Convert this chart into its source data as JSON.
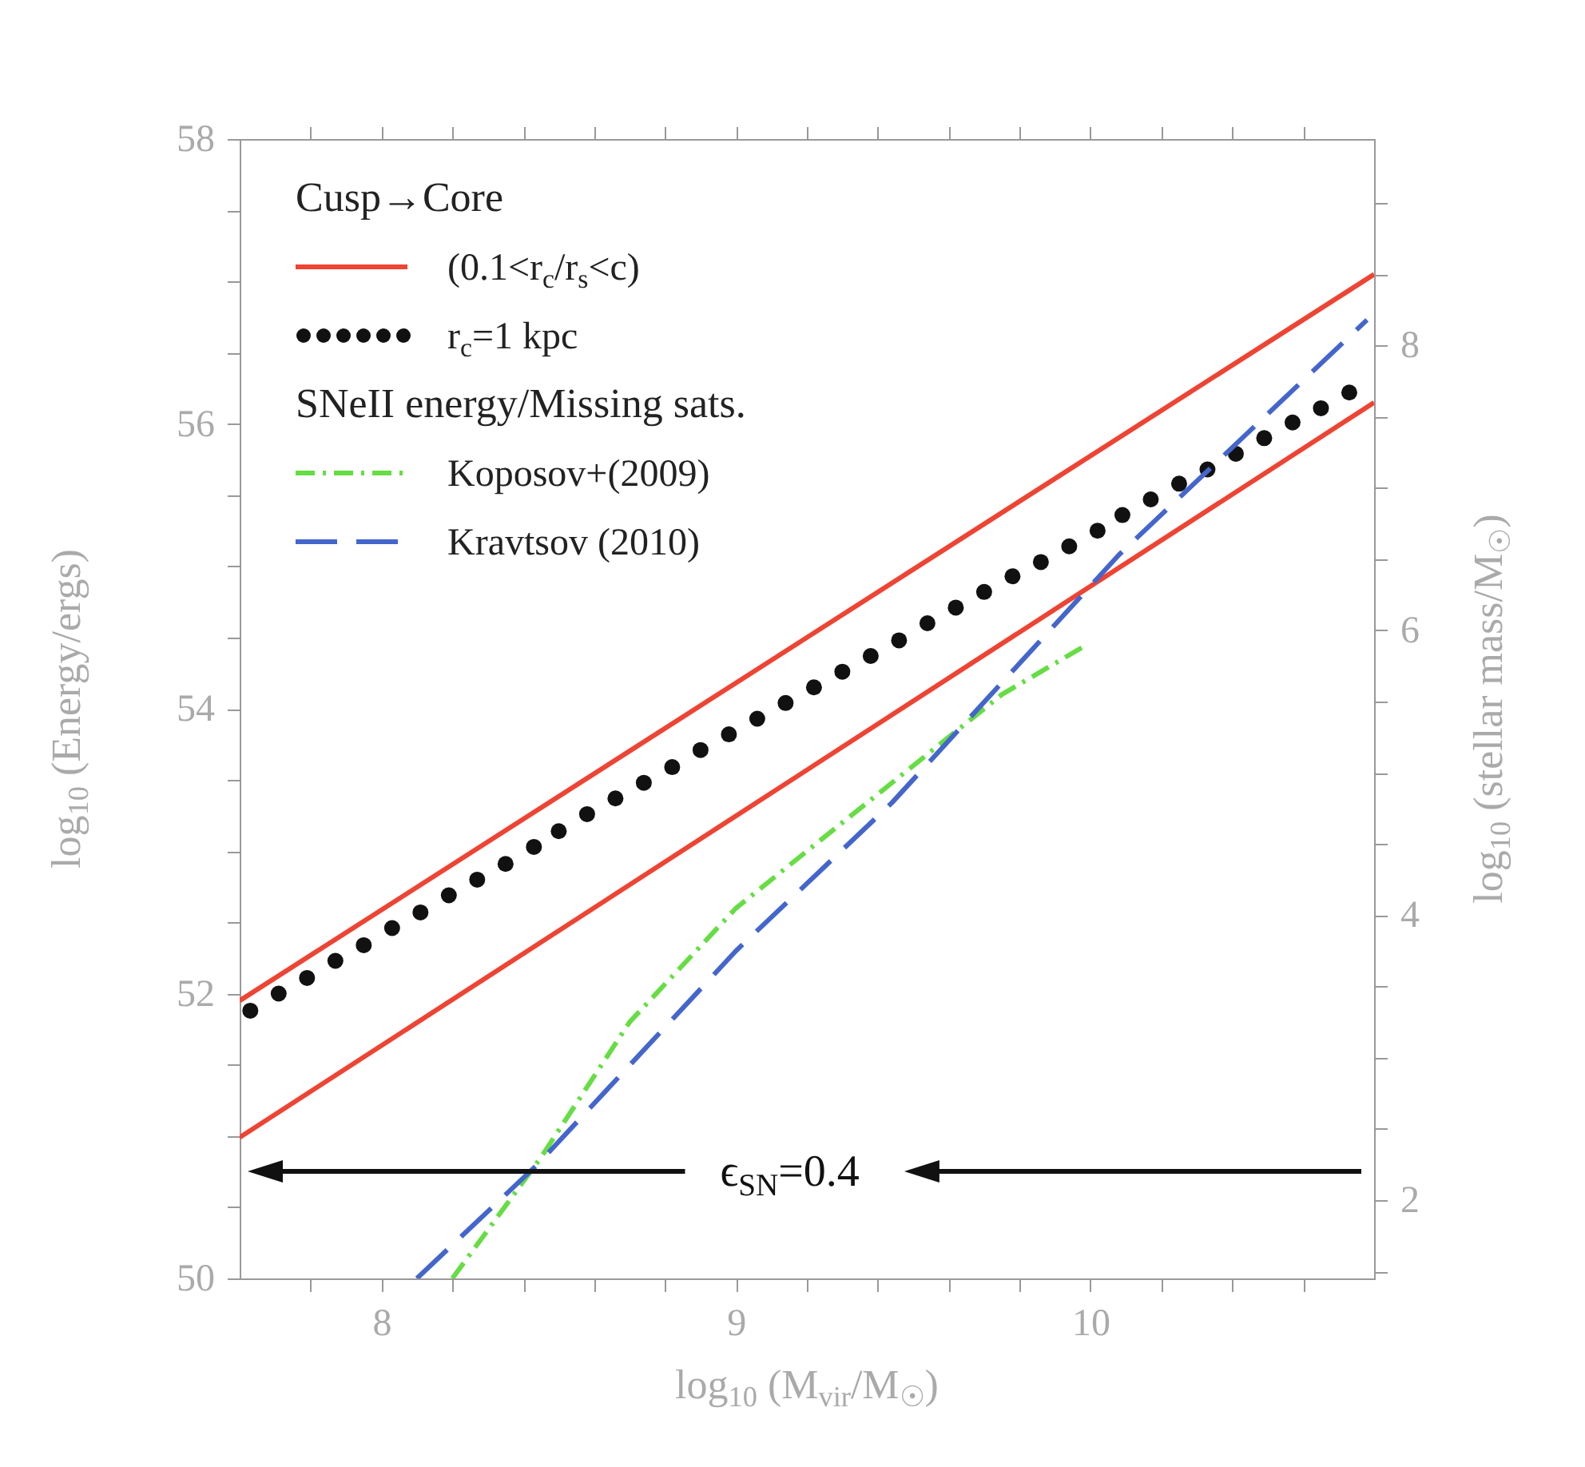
{
  "chart_data": {
    "type": "line",
    "xlabel": "log$_{10}$ (M$_{vir}$/M$_{☉}$)",
    "ylabel": "log$_{10}$ (Energy/ergs)",
    "y2label": "log$_{10}$ (stellar mass/M$_{☉}$)",
    "legend_title": "Cusp→Core",
    "legend": "top left",
    "grid": false,
    "annotations": [
      "SNeII energy/Missing sats.",
      "ϵ$_{SN}$=0.4"
    ],
    "xlim": [
      7.6,
      10.8
    ],
    "xticks": [
      {
        "value": 7.8,
        "label": null
      },
      8,
      {
        "value": 8.2,
        "label": null
      },
      {
        "value": 8.4,
        "label": null
      },
      {
        "value": 8.6,
        "label": null
      },
      {
        "value": 8.8,
        "label": null
      },
      9,
      {
        "value": 9.2,
        "label": null
      },
      {
        "value": 9.4,
        "label": null
      },
      {
        "value": 9.6,
        "label": null
      },
      {
        "value": 9.8,
        "label": null
      },
      10,
      {
        "value": 10.2,
        "label": null
      },
      {
        "value": 10.4,
        "label": null
      },
      {
        "value": 10.6,
        "label": null
      }
    ],
    "ylim": [
      50,
      58
    ],
    "yticks": [
      50,
      {
        "value": 50.5,
        "label": null
      },
      {
        "value": 51,
        "label": null
      },
      {
        "value": 51.5,
        "label": null
      },
      52,
      {
        "value": 52.5,
        "label": null
      },
      {
        "value": 53,
        "label": null
      },
      {
        "value": 53.5,
        "label": null
      },
      54,
      {
        "value": 54.5,
        "label": null
      },
      {
        "value": 55,
        "label": null
      },
      {
        "value": 55.5,
        "label": null
      },
      56,
      {
        "value": 56.5,
        "label": null
      },
      {
        "value": 57,
        "label": null
      },
      {
        "value": 57.5,
        "label": null
      },
      58
    ],
    "y2lim": [
      1.45,
      9.45
    ],
    "y2ticks": [
      {
        "value": 1.5,
        "label": null
      },
      2,
      {
        "value": 2.5,
        "label": null
      },
      {
        "value": 3,
        "label": null
      },
      {
        "value": 3.5,
        "label": null
      },
      4,
      {
        "value": 4.5,
        "label": null
      },
      {
        "value": 5,
        "label": null
      },
      {
        "value": 5.5,
        "label": null
      },
      6,
      {
        "value": 6.5,
        "label": null
      },
      {
        "value": 7,
        "label": null
      },
      {
        "value": 7.5,
        "label": null
      },
      8,
      {
        "value": 8.5,
        "label": null
      },
      {
        "value": 9,
        "label": null
      }
    ],
    "series": [
      {
        "name": "(0.1<r$_{c}$/r$_{s}$<c)",
        "line_style": "solid",
        "color": "#ee4433",
        "x": [
          7.6,
          10.8
        ],
        "values": [
          51.95,
          57.05
        ]
      },
      {
        "line_style": "solid",
        "color": "#ee4433",
        "x": [
          7.6,
          10.8
        ],
        "values": [
          50.99,
          56.15
        ]
      },
      {
        "name": "r$_{c}$=1 kpc",
        "type": "scatter",
        "marker": "circle",
        "color": "#111111",
        "x": [
          7.63,
          7.71,
          7.79,
          7.87,
          7.95,
          8.03,
          8.11,
          8.19,
          8.27,
          8.35,
          8.43,
          8.5,
          8.58,
          8.66,
          8.74,
          8.82,
          8.9,
          8.98,
          9.06,
          9.14,
          9.22,
          9.3,
          9.38,
          9.46,
          9.54,
          9.62,
          9.7,
          9.78,
          9.86,
          9.94,
          10.02,
          10.09,
          10.17,
          10.25,
          10.33,
          10.41,
          10.49,
          10.57,
          10.65,
          10.73
        ],
        "values": [
          51.88,
          52.0,
          52.11,
          52.23,
          52.34,
          52.46,
          52.57,
          52.69,
          52.8,
          52.91,
          53.03,
          53.14,
          53.26,
          53.37,
          53.48,
          53.59,
          53.71,
          53.82,
          53.93,
          54.04,
          54.15,
          54.26,
          54.37,
          54.48,
          54.6,
          54.71,
          54.82,
          54.93,
          55.03,
          55.14,
          55.25,
          55.36,
          55.47,
          55.58,
          55.68,
          55.79,
          55.9,
          56.01,
          56.11,
          56.22
        ]
      },
      {
        "name": "Koposov+(2009)",
        "line_style": "dashdot",
        "color": "#66dd44",
        "x": [
          8.2,
          8.45,
          8.7,
          9.0,
          9.25,
          9.5,
          9.75,
          9.99
        ],
        "values": [
          50.0,
          50.85,
          51.8,
          52.6,
          53.1,
          53.6,
          54.1,
          54.45
        ]
      },
      {
        "name": "Kravtsov (2010)",
        "line_style": "dashed",
        "color": "#4466cc",
        "x": [
          8.1,
          8.44,
          9.0,
          9.44,
          10.08,
          10.78
        ],
        "values": [
          50.0,
          50.8,
          52.3,
          53.34,
          55.08,
          56.73
        ]
      }
    ]
  }
}
